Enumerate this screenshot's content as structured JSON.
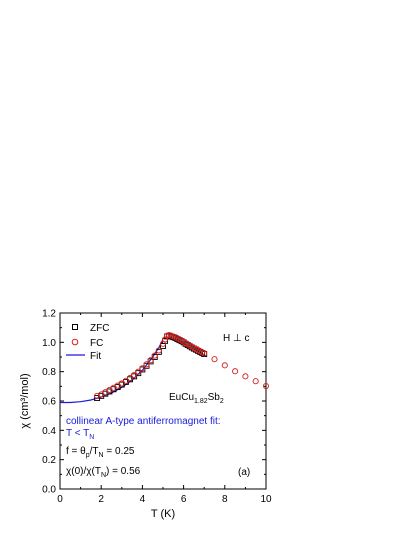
{
  "chart_data": {
    "type": "scatter",
    "xlabel": "T (K)",
    "ylabel": "χ (cm³/mol)",
    "xlim": [
      0,
      10
    ],
    "ylim": [
      0.0,
      1.2
    ],
    "x_ticks": [
      0,
      2,
      4,
      6,
      8,
      10
    ],
    "y_ticks": [
      0.0,
      0.2,
      0.4,
      0.6,
      0.8,
      1.0,
      1.2
    ],
    "x_tick_labels": [
      "0",
      "2",
      "4",
      "6",
      "8",
      "10"
    ],
    "y_tick_labels": [
      "0.0",
      "0.2",
      "0.4",
      "0.6",
      "0.8",
      "1.0",
      "1.2"
    ],
    "legend_position": "top-left",
    "legend": [
      "ZFC",
      "FC",
      "Fit"
    ],
    "series": [
      {
        "name": "ZFC",
        "marker": "square",
        "color": "#000000",
        "points": [
          [
            1.8,
            0.62
          ],
          [
            2.0,
            0.635
          ],
          [
            2.2,
            0.65
          ],
          [
            2.4,
            0.665
          ],
          [
            2.6,
            0.68
          ],
          [
            2.8,
            0.695
          ],
          [
            3.0,
            0.712
          ],
          [
            3.2,
            0.73
          ],
          [
            3.4,
            0.748
          ],
          [
            3.6,
            0.768
          ],
          [
            3.8,
            0.79
          ],
          [
            4.0,
            0.815
          ],
          [
            4.2,
            0.84
          ],
          [
            4.4,
            0.87
          ],
          [
            4.6,
            0.9
          ],
          [
            4.8,
            0.935
          ],
          [
            5.0,
            0.975
          ],
          [
            5.1,
            1.01
          ],
          [
            5.2,
            1.04
          ],
          [
            5.3,
            1.045
          ],
          [
            5.4,
            1.04
          ],
          [
            5.5,
            1.035
          ],
          [
            5.6,
            1.03
          ],
          [
            5.7,
            1.022
          ],
          [
            5.8,
            1.015
          ],
          [
            5.9,
            1.008
          ],
          [
            6.0,
            1.0
          ],
          [
            6.1,
            0.99
          ],
          [
            6.2,
            0.982
          ],
          [
            6.3,
            0.973
          ],
          [
            6.4,
            0.965
          ],
          [
            6.5,
            0.957
          ],
          [
            6.6,
            0.95
          ],
          [
            6.7,
            0.942
          ],
          [
            6.8,
            0.935
          ],
          [
            6.9,
            0.928
          ],
          [
            7.0,
            0.92
          ]
        ]
      },
      {
        "name": "FC",
        "marker": "circle",
        "color": "#d62020",
        "points": [
          [
            1.8,
            0.635
          ],
          [
            2.0,
            0.645
          ],
          [
            2.2,
            0.66
          ],
          [
            2.4,
            0.675
          ],
          [
            2.6,
            0.69
          ],
          [
            2.8,
            0.705
          ],
          [
            3.0,
            0.72
          ],
          [
            3.2,
            0.738
          ],
          [
            3.4,
            0.757
          ],
          [
            3.6,
            0.777
          ],
          [
            3.8,
            0.8
          ],
          [
            4.0,
            0.823
          ],
          [
            4.2,
            0.85
          ],
          [
            4.4,
            0.878
          ],
          [
            4.6,
            0.91
          ],
          [
            4.8,
            0.945
          ],
          [
            5.0,
            0.99
          ],
          [
            5.1,
            1.02
          ],
          [
            5.2,
            1.045
          ],
          [
            5.3,
            1.05
          ],
          [
            5.4,
            1.045
          ],
          [
            5.5,
            1.04
          ],
          [
            5.6,
            1.035
          ],
          [
            5.7,
            1.027
          ],
          [
            5.8,
            1.02
          ],
          [
            5.9,
            1.012
          ],
          [
            6.0,
            1.004
          ],
          [
            6.1,
            0.995
          ],
          [
            6.2,
            0.987
          ],
          [
            6.3,
            0.978
          ],
          [
            6.4,
            0.97
          ],
          [
            6.5,
            0.962
          ],
          [
            6.6,
            0.955
          ],
          [
            6.7,
            0.947
          ],
          [
            6.8,
            0.94
          ],
          [
            6.9,
            0.933
          ],
          [
            7.0,
            0.925
          ],
          [
            7.5,
            0.885
          ],
          [
            8.0,
            0.843
          ],
          [
            8.5,
            0.803
          ],
          [
            9.0,
            0.768
          ],
          [
            9.5,
            0.735
          ],
          [
            10.0,
            0.702
          ]
        ]
      }
    ],
    "fit": {
      "name": "Fit",
      "color": "#1a1adb",
      "points": [
        [
          0.0,
          0.59
        ],
        [
          0.5,
          0.59
        ],
        [
          1.0,
          0.595
        ],
        [
          1.5,
          0.607
        ],
        [
          2.0,
          0.627
        ],
        [
          2.5,
          0.655
        ],
        [
          3.0,
          0.693
        ],
        [
          3.5,
          0.743
        ],
        [
          4.0,
          0.81
        ],
        [
          4.5,
          0.9
        ],
        [
          4.8,
          0.965
        ],
        [
          5.0,
          1.02
        ]
      ]
    },
    "annotations": {
      "field_direction": "H ⊥ c",
      "compound_base": "EuCu",
      "compound_sub1": "1.82",
      "compound_mid": "Sb",
      "compound_sub2": "2",
      "fit_desc": "collinear A-type antiferromagnet fit:",
      "cond_base": "T < T",
      "cond_sub": "N",
      "f_base": "f = θ",
      "f_sub1": "p",
      "f_mid": "/T",
      "f_sub2": "N",
      "f_tail": " = 0.25",
      "chi_base": "χ(0)/χ(T",
      "chi_sub": "N",
      "chi_tail": ") = 0.56",
      "panel": "(a)"
    }
  }
}
